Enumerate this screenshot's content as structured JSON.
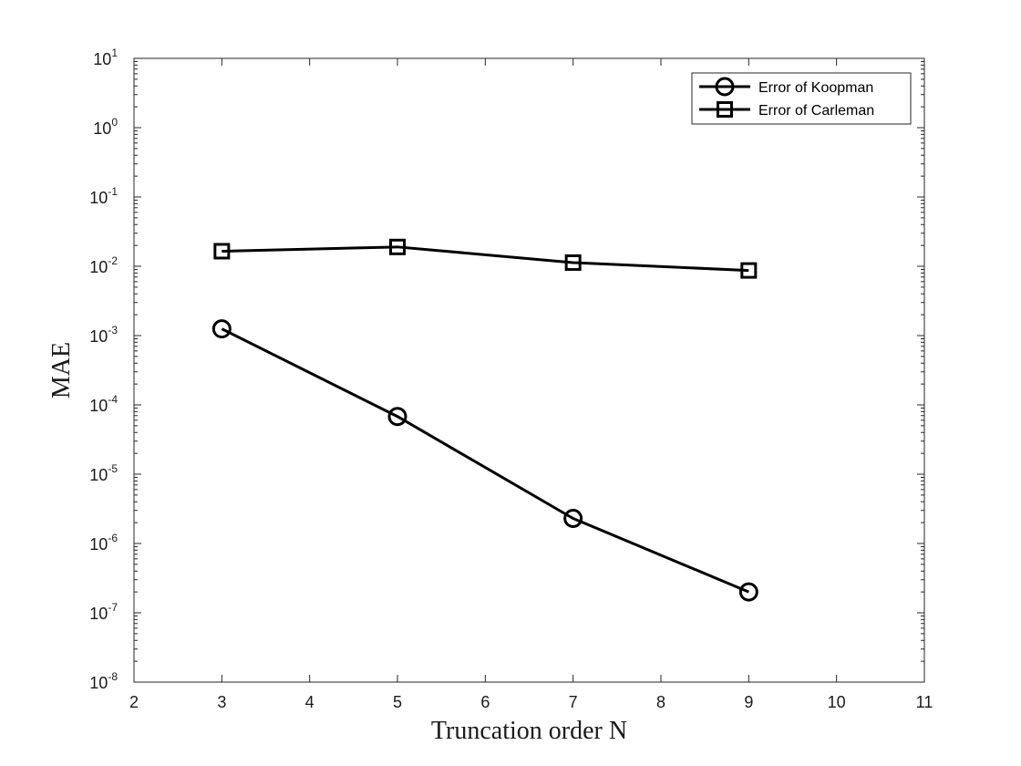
{
  "chart_data": {
    "type": "line",
    "title": "",
    "xlabel": "Truncation order N",
    "ylabel": "MAE",
    "xlim": [
      2,
      11
    ],
    "ylim": [
      1e-08,
      10
    ],
    "yscale": "log",
    "xticks": [
      2,
      3,
      4,
      5,
      6,
      7,
      8,
      9,
      10,
      11
    ],
    "xtick_labels": [
      "2",
      "3",
      "4",
      "5",
      "6",
      "7",
      "8",
      "9",
      "10",
      "11"
    ],
    "yticks": [
      {
        "base": "10",
        "exp": "1",
        "value": 10
      },
      {
        "base": "10",
        "exp": "0",
        "value": 1
      },
      {
        "base": "10",
        "exp": "-1",
        "value": 0.1
      },
      {
        "base": "10",
        "exp": "-2",
        "value": 0.01
      },
      {
        "base": "10",
        "exp": "-3",
        "value": 0.001
      },
      {
        "base": "10",
        "exp": "-4",
        "value": 0.0001
      },
      {
        "base": "10",
        "exp": "-5",
        "value": 1e-05
      },
      {
        "base": "10",
        "exp": "-6",
        "value": 1e-06
      },
      {
        "base": "10",
        "exp": "-7",
        "value": 1e-07
      },
      {
        "base": "10",
        "exp": "-8",
        "value": 1e-08
      }
    ],
    "grid": false,
    "legend_position": "top-right",
    "x": [
      3,
      5,
      7,
      9
    ],
    "series": [
      {
        "name": "Error of Koopman",
        "marker": "circle",
        "color": "#000000",
        "values": [
          0.00125,
          6.8e-05,
          2.3e-06,
          2e-07
        ]
      },
      {
        "name": "Error of Carleman",
        "marker": "square",
        "color": "#000000",
        "values": [
          0.0165,
          0.019,
          0.0113,
          0.0087
        ]
      }
    ]
  }
}
